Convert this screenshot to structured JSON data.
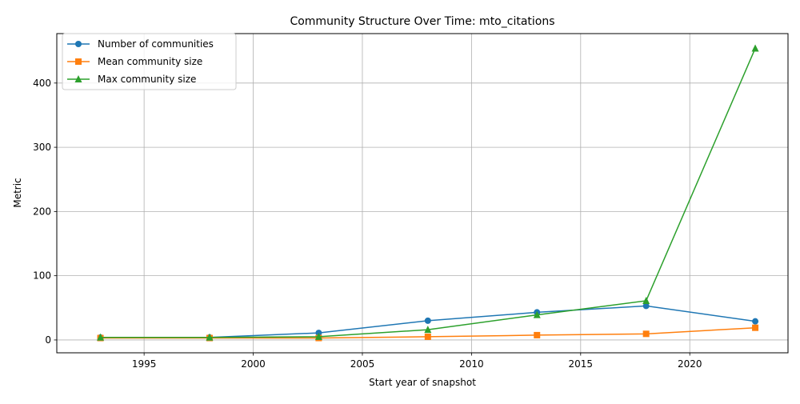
{
  "chart_data": {
    "type": "line",
    "title": "Community Structure Over Time: mto_citations",
    "xlabel": "Start year of snapshot",
    "ylabel": "Metric",
    "x": [
      1993,
      1998,
      2003,
      2008,
      2013,
      2018,
      2023
    ],
    "xlim": [
      1991,
      2024.5
    ],
    "ylim": [
      -20,
      477
    ],
    "x_ticks": [
      1995,
      2000,
      2005,
      2010,
      2015,
      2020
    ],
    "y_ticks": [
      0,
      100,
      200,
      300,
      400
    ],
    "grid": true,
    "legend_position": "top-left",
    "series": [
      {
        "name": "Number of communities",
        "marker": "circle",
        "color": "#1f77b4",
        "values": [
          4,
          4,
          11,
          30,
          43,
          53,
          29
        ]
      },
      {
        "name": "Mean community size",
        "marker": "square",
        "color": "#ff7f0e",
        "values": [
          3,
          3,
          3,
          5,
          7.5,
          9.5,
          19
        ]
      },
      {
        "name": "Max community size",
        "marker": "triangle",
        "color": "#2ca02c",
        "values": [
          4,
          4,
          5,
          16,
          39,
          61,
          454
        ]
      }
    ]
  }
}
